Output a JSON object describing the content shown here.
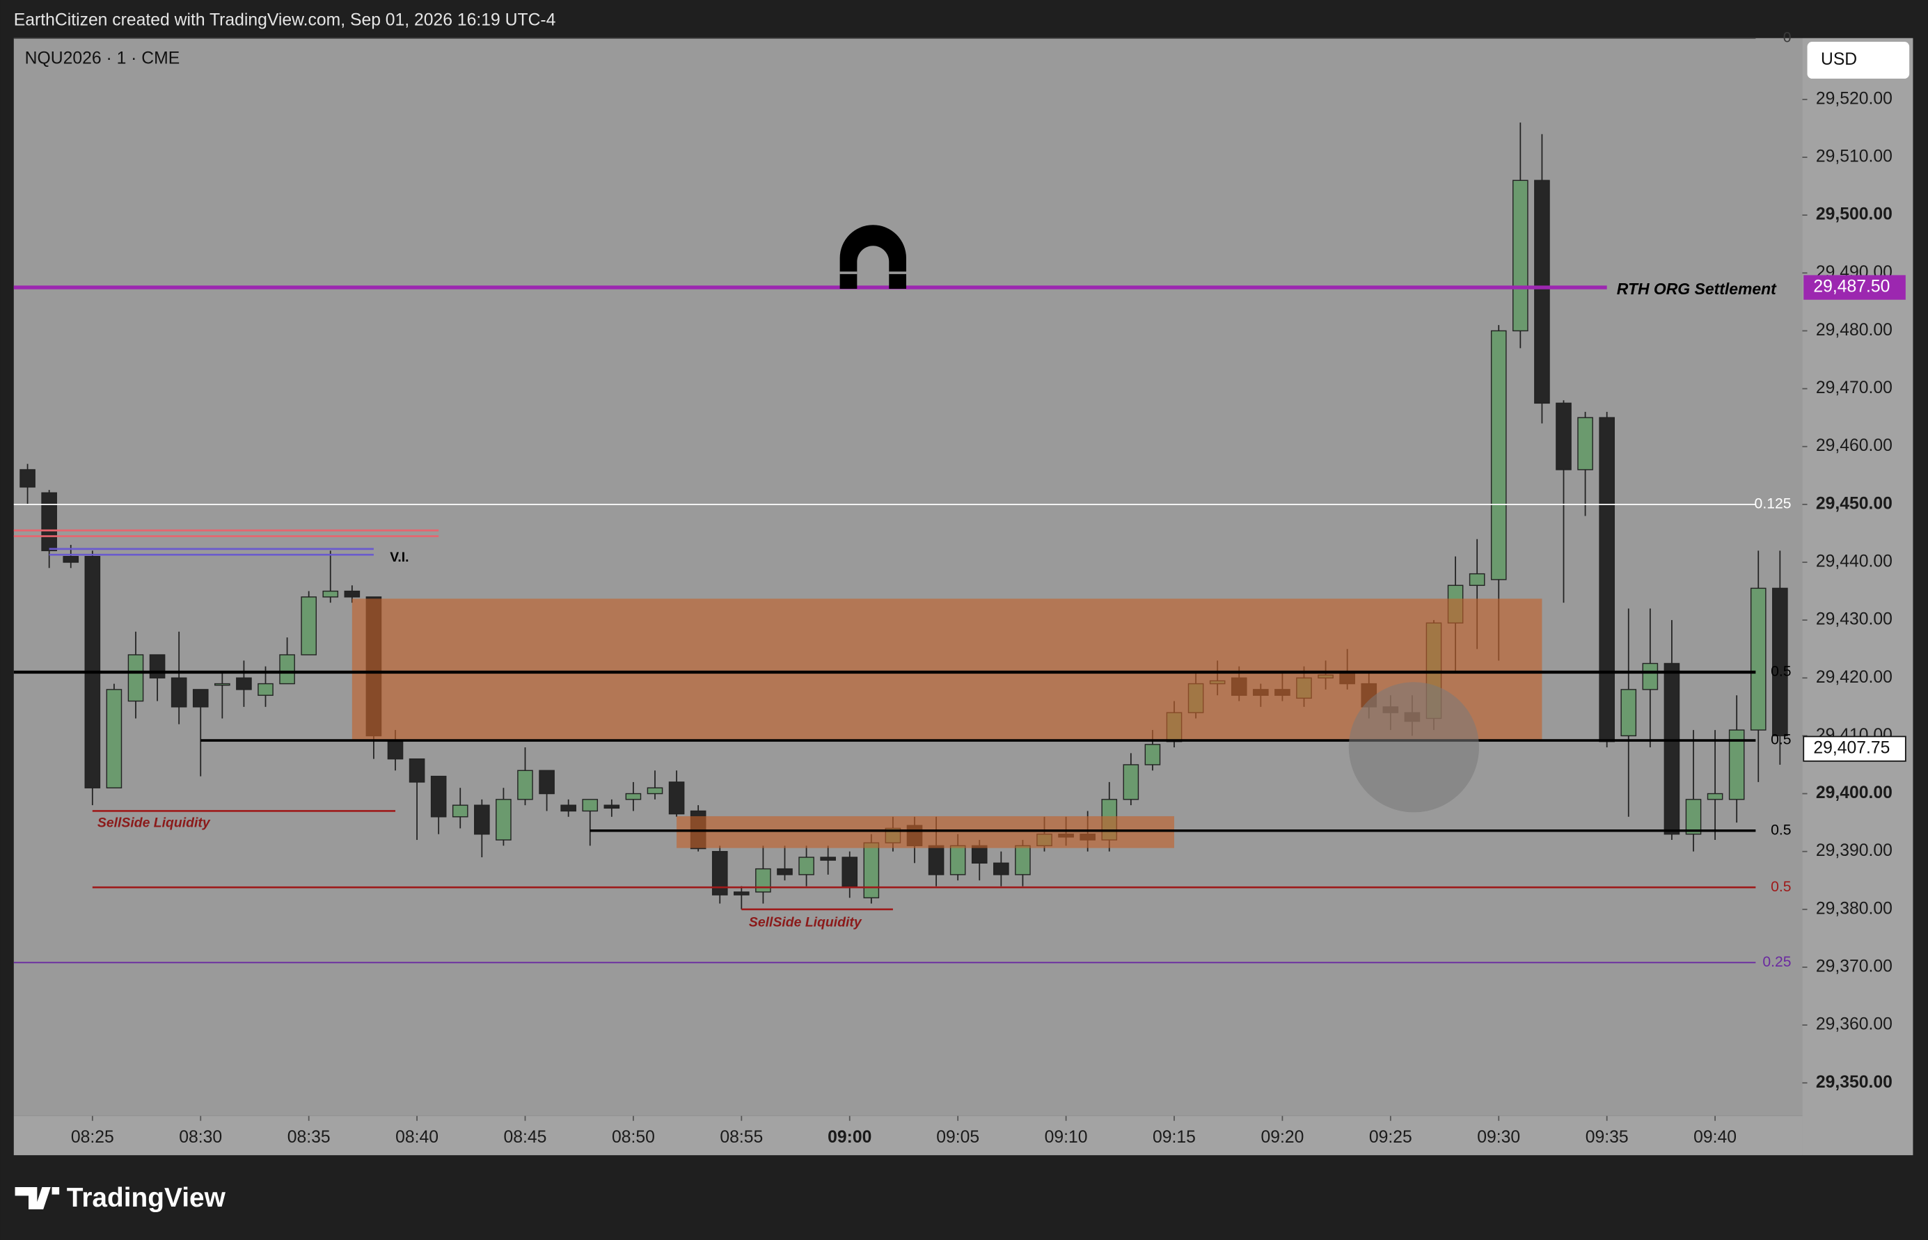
{
  "header": {
    "credit": "EarthCitizen created with TradingView.com, Sep 01, 2026 16:19 UTC-4"
  },
  "footer": {
    "logo": "TradingView"
  },
  "chart_data": {
    "type": "candlestick",
    "title": "NQU2026 · 1 · CME",
    "currency": "USD",
    "x": [
      "08:22",
      "08:23",
      "08:24",
      "08:25",
      "08:26",
      "08:27",
      "08:28",
      "08:29",
      "08:30",
      "08:31",
      "08:32",
      "08:33",
      "08:34",
      "08:35",
      "08:36",
      "08:37",
      "08:38",
      "08:39",
      "08:40",
      "08:41",
      "08:42",
      "08:43",
      "08:44",
      "08:45",
      "08:46",
      "08:47",
      "08:48",
      "08:49",
      "08:50",
      "08:51",
      "08:52",
      "08:53",
      "08:54",
      "08:55",
      "08:56",
      "08:57",
      "08:58",
      "08:59",
      "09:00",
      "09:01",
      "09:02",
      "09:03",
      "09:04",
      "09:05",
      "09:06",
      "09:07",
      "09:08",
      "09:09",
      "09:10",
      "09:11",
      "09:12",
      "09:13",
      "09:14",
      "09:15",
      "09:16",
      "09:17",
      "09:18",
      "09:19",
      "09:20",
      "09:21",
      "09:22",
      "09:23",
      "09:24",
      "09:25",
      "09:26",
      "09:27",
      "09:28",
      "09:29",
      "09:30",
      "09:31",
      "09:32",
      "09:33",
      "09:34",
      "09:35",
      "09:36",
      "09:37",
      "09:38",
      "09:39",
      "09:40",
      "09:41",
      "09:42",
      "09:43"
    ],
    "open": [
      29456,
      29452,
      29441,
      29441,
      29401,
      29416,
      29424,
      29420,
      29418,
      29419,
      29420,
      29417,
      29419,
      29424,
      29434,
      29435,
      29434,
      29409,
      29406,
      29403,
      29396,
      29398,
      29392,
      29399,
      29404,
      29398,
      29397,
      29398,
      29399,
      29400,
      29402,
      29397,
      29390,
      29383,
      29383,
      29387,
      29386,
      29389,
      29389,
      29382,
      29391.5,
      29394.5,
      29391,
      29386,
      29391,
      29388,
      29386,
      29391,
      29393,
      29393,
      29392,
      29399,
      29405,
      29409,
      29414,
      29419,
      29420,
      29418,
      29418,
      29416.5,
      29420,
      29421,
      29419,
      29415,
      29414,
      29413,
      29429.5,
      29436,
      29437,
      29480,
      29506,
      29467.5,
      29456,
      29465,
      29410,
      29418,
      29422.5,
      29393,
      29399,
      29399,
      29411,
      29435.5
    ],
    "high": [
      29457,
      29452.5,
      29443,
      29442,
      29419,
      29428,
      29424,
      29428,
      29418,
      29421,
      29423,
      29422,
      29427,
      29435,
      29442,
      29436,
      29434,
      29411,
      29406,
      29403,
      29401,
      29399,
      29401,
      29408,
      29404,
      29399,
      29399,
      29399,
      29402,
      29404,
      29404,
      29398,
      29391,
      29384,
      29391,
      29391,
      29391,
      29391,
      29390,
      29393,
      29396,
      29396,
      29396,
      29393,
      29392,
      29390,
      29392,
      29396,
      29396,
      29397,
      29402,
      29407,
      29411,
      29416,
      29421,
      29423,
      29422,
      29419,
      29421,
      29422,
      29423,
      29425,
      29421,
      29417,
      29417,
      29430,
      29441,
      29444,
      29481,
      29516,
      29514,
      29468,
      29466,
      29466,
      29432,
      29432,
      29430,
      29411,
      29411,
      29417,
      29442,
      29442
    ],
    "low": [
      29450,
      29439,
      29439,
      29398,
      29401,
      29413,
      29416,
      29412,
      29403,
      29413,
      29415,
      29415,
      29419,
      29424,
      29433,
      29433,
      29406,
      29404,
      29392,
      29393,
      29394,
      29389,
      29391,
      29398,
      29397,
      29396,
      29391,
      29396,
      29397,
      29399,
      29396,
      29390,
      29381,
      29380,
      29381,
      29385,
      29384,
      29386,
      29382,
      29381,
      29390,
      29388,
      29384,
      29385,
      29385,
      29384,
      29384,
      29390,
      29391,
      29390,
      29390,
      29398,
      29404,
      29408,
      29413,
      29417,
      29416,
      29415,
      29416,
      29415,
      29418,
      29418,
      29413,
      29411,
      29410,
      29411,
      29421,
      29425,
      29423,
      29477,
      29464,
      29433,
      29448,
      29408,
      29396,
      29408,
      29392,
      29390,
      29392,
      29395,
      29402,
      29405
    ],
    "close": [
      29453,
      29442,
      29440,
      29401,
      29418,
      29424,
      29420,
      29415,
      29415,
      29419,
      29418,
      29419,
      29424,
      29434,
      29435,
      29434,
      29410,
      29406,
      29402,
      29396,
      29398,
      29393,
      29399,
      29404,
      29400,
      29397,
      29399,
      29397.5,
      29400,
      29401,
      29396.5,
      29390.5,
      29382.5,
      29382.5,
      29387,
      29386,
      29389,
      29388.5,
      29384,
      29391.5,
      29394,
      29391,
      29386,
      29391,
      29388,
      29386,
      29391,
      29393,
      29392.5,
      29392,
      29399,
      29405,
      29408.5,
      29414,
      29419,
      29419.5,
      29417,
      29417,
      29417,
      29420,
      29420.5,
      29419,
      29415,
      29414,
      29412.5,
      29429.5,
      29436,
      29438,
      29480,
      29506,
      29467.5,
      29456,
      29465,
      29409,
      29418,
      29422.5,
      29393,
      29399,
      29400,
      29411,
      29435.5,
      29410
    ],
    "up_color": "#6b9a6e",
    "down_color": "#262626",
    "ylim": [
      29344.3,
      29530.6
    ],
    "yticks": [
      {
        "value": 29350,
        "label": "29,350.00"
      },
      {
        "value": 29360,
        "label": "29,360.00"
      },
      {
        "value": 29370,
        "label": "29,370.00"
      },
      {
        "value": 29380,
        "label": "29,380.00"
      },
      {
        "value": 29390,
        "label": "29,390.00"
      },
      {
        "value": 29400,
        "label": "29,400.00"
      },
      {
        "value": 29410,
        "label": "29,410.00"
      },
      {
        "value": 29420,
        "label": "29,420.00"
      },
      {
        "value": 29430,
        "label": "29,430.00"
      },
      {
        "value": 29440,
        "label": "29,440.00"
      },
      {
        "value": 29450,
        "label": "29,450.00"
      },
      {
        "value": 29460,
        "label": "29,460.00"
      },
      {
        "value": 29470,
        "label": "29,470.00"
      },
      {
        "value": 29480,
        "label": "29,480.00"
      },
      {
        "value": 29490,
        "label": "29,490.00"
      },
      {
        "value": 29500,
        "label": "29,500.00"
      },
      {
        "value": 29510,
        "label": "29,510.00"
      },
      {
        "value": 29520,
        "label": "29,520.00"
      }
    ],
    "xticks": [
      "08:25",
      "08:30",
      "08:35",
      "08:40",
      "08:45",
      "08:50",
      "08:55",
      "09:00",
      "09:05",
      "09:10",
      "09:15",
      "09:20",
      "09:25",
      "09:30",
      "09:35",
      "09:40"
    ],
    "zones": [
      {
        "top": 29433.7,
        "bottom": 29409.2,
        "start": "08:37",
        "end": "09:32",
        "color": "#c4632b"
      },
      {
        "top": 29396.1,
        "bottom": 29390.6,
        "start": "08:52",
        "end": "09:15",
        "color": "#c4632b"
      }
    ],
    "levels": [
      {
        "value": 29530.6,
        "label": "0",
        "color": "#3a3a3a",
        "width": 1
      },
      {
        "value": 29487.5,
        "color": "#9c27b0",
        "width": 3,
        "end": "09:35"
      },
      {
        "value": 29450,
        "label": "0.125",
        "color": "#ffffff",
        "width": 1
      },
      {
        "value": 29421,
        "label": "0.5",
        "color": "#000000",
        "width": 2.5
      },
      {
        "value": 29409.2,
        "label": "0.5",
        "color": "#000000",
        "width": 2,
        "start": "08:30"
      },
      {
        "value": 29393.6,
        "label": "0.5",
        "color": "#000000",
        "width": 2,
        "start": "08:48"
      },
      {
        "value": 29383.8,
        "label": "0.5",
        "color": "#9e1a1a",
        "width": 1.5,
        "start": "08:25"
      },
      {
        "value": 29370.8,
        "label": "0.25",
        "color": "#6a2aa0",
        "width": 1
      },
      {
        "value": 29445.5,
        "color": "#e8646e",
        "width": 1.5,
        "end": "08:41"
      },
      {
        "value": 29444.5,
        "color": "#e8646e",
        "width": 1.5,
        "end": "08:41"
      },
      {
        "value": 29442.3,
        "color": "#6a5acd",
        "width": 1.5,
        "start": "08:23",
        "end": "08:38"
      },
      {
        "value": 29441.3,
        "color": "#6a5acd",
        "width": 1.5,
        "start": "08:23",
        "end": "08:38"
      },
      {
        "value": 29397,
        "color": "#9e1a1a",
        "width": 1.5,
        "start": "08:25",
        "end": "08:39"
      },
      {
        "value": 29380,
        "color": "#9e1a1a",
        "width": 1.5,
        "start": "08:55",
        "end": "09:02"
      }
    ],
    "annotations": [
      "RTH ORG Settlement",
      "V.I.",
      "SellSide Liquidity",
      "SellSide Liquidity"
    ],
    "price_labels": [
      {
        "value": 29487.5,
        "label": "29,487.50",
        "color": "#9c27b0"
      },
      {
        "value": 29407.75,
        "label": "29,407.75",
        "color": "#ffffff"
      }
    ]
  }
}
